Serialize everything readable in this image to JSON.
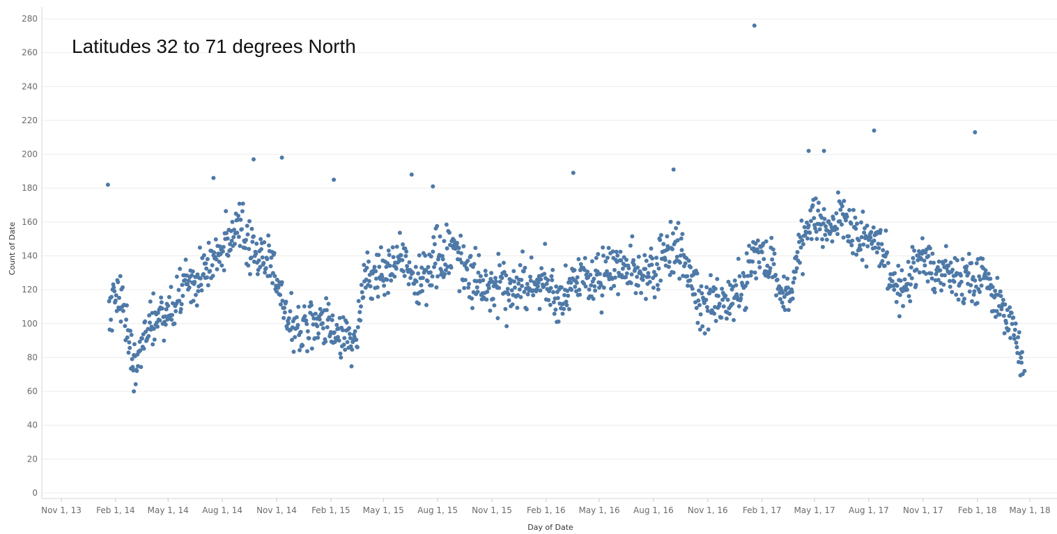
{
  "chart_data": {
    "type": "scatter",
    "title": "Latitudes 32 to 71 degrees North",
    "xlabel": "Day of Date",
    "ylabel": "Count of Date",
    "ylim": [
      0,
      280
    ],
    "y_ticks": [
      0,
      20,
      40,
      60,
      80,
      100,
      120,
      140,
      160,
      180,
      200,
      220,
      240,
      260,
      280
    ],
    "x_range_days": [
      -24,
      1570
    ],
    "x_ticks": [
      {
        "label": "Nov 1, 13",
        "day": 0
      },
      {
        "label": "Feb 1, 14",
        "day": 92
      },
      {
        "label": "May 1, 14",
        "day": 181
      },
      {
        "label": "Aug 1, 14",
        "day": 273
      },
      {
        "label": "Nov 1, 14",
        "day": 365
      },
      {
        "label": "Feb 1, 15",
        "day": 457
      },
      {
        "label": "May 1, 15",
        "day": 546
      },
      {
        "label": "Aug 1, 15",
        "day": 638
      },
      {
        "label": "Nov 1, 15",
        "day": 730
      },
      {
        "label": "Feb 1, 16",
        "day": 822
      },
      {
        "label": "May 1, 16",
        "day": 912
      },
      {
        "label": "Aug 1, 16",
        "day": 1004
      },
      {
        "label": "Nov 1, 16",
        "day": 1096
      },
      {
        "label": "Feb 1, 17",
        "day": 1188
      },
      {
        "label": "May 1, 17",
        "day": 1277
      },
      {
        "label": "Aug 1, 17",
        "day": 1369
      },
      {
        "label": "Nov 1, 17",
        "day": 1461
      },
      {
        "label": "Feb 1, 18",
        "day": 1553
      },
      {
        "label": "May 1, 18",
        "day": 1642
      }
    ],
    "point_color": "#4e79a7",
    "note": "Points are daily counts; the series below is the rough trend digitized from the plot, with notable outliers listed separately.",
    "series": [
      {
        "name": "Count of Date (trend by date)",
        "points": [
          {
            "day": 81,
            "count": 106
          },
          {
            "day": 95,
            "count": 120
          },
          {
            "day": 105,
            "count": 108
          },
          {
            "day": 115,
            "count": 86
          },
          {
            "day": 125,
            "count": 78
          },
          {
            "day": 135,
            "count": 88
          },
          {
            "day": 150,
            "count": 100
          },
          {
            "day": 165,
            "count": 105
          },
          {
            "day": 180,
            "count": 106
          },
          {
            "day": 195,
            "count": 112
          },
          {
            "day": 210,
            "count": 122
          },
          {
            "day": 225,
            "count": 125
          },
          {
            "day": 240,
            "count": 128
          },
          {
            "day": 255,
            "count": 138
          },
          {
            "day": 270,
            "count": 143
          },
          {
            "day": 285,
            "count": 145
          },
          {
            "day": 300,
            "count": 155
          },
          {
            "day": 315,
            "count": 150
          },
          {
            "day": 330,
            "count": 145
          },
          {
            "day": 345,
            "count": 140
          },
          {
            "day": 360,
            "count": 130
          },
          {
            "day": 372,
            "count": 118
          },
          {
            "day": 385,
            "count": 100
          },
          {
            "day": 400,
            "count": 98
          },
          {
            "day": 420,
            "count": 100
          },
          {
            "day": 440,
            "count": 100
          },
          {
            "day": 460,
            "count": 98
          },
          {
            "day": 480,
            "count": 92
          },
          {
            "day": 500,
            "count": 95
          },
          {
            "day": 515,
            "count": 125
          },
          {
            "day": 530,
            "count": 128
          },
          {
            "day": 545,
            "count": 128
          },
          {
            "day": 560,
            "count": 140
          },
          {
            "day": 575,
            "count": 142
          },
          {
            "day": 590,
            "count": 130
          },
          {
            "day": 605,
            "count": 125
          },
          {
            "day": 620,
            "count": 135
          },
          {
            "day": 635,
            "count": 140
          },
          {
            "day": 650,
            "count": 138
          },
          {
            "day": 665,
            "count": 145
          },
          {
            "day": 680,
            "count": 132
          },
          {
            "day": 700,
            "count": 125
          },
          {
            "day": 720,
            "count": 120
          },
          {
            "day": 740,
            "count": 126
          },
          {
            "day": 760,
            "count": 118
          },
          {
            "day": 780,
            "count": 125
          },
          {
            "day": 800,
            "count": 125
          },
          {
            "day": 820,
            "count": 122
          },
          {
            "day": 840,
            "count": 110
          },
          {
            "day": 860,
            "count": 120
          },
          {
            "day": 880,
            "count": 128
          },
          {
            "day": 900,
            "count": 125
          },
          {
            "day": 920,
            "count": 130
          },
          {
            "day": 940,
            "count": 130
          },
          {
            "day": 960,
            "count": 135
          },
          {
            "day": 980,
            "count": 128
          },
          {
            "day": 1000,
            "count": 130
          },
          {
            "day": 1020,
            "count": 140
          },
          {
            "day": 1040,
            "count": 145
          },
          {
            "day": 1055,
            "count": 140
          },
          {
            "day": 1070,
            "count": 122
          },
          {
            "day": 1085,
            "count": 110
          },
          {
            "day": 1100,
            "count": 112
          },
          {
            "day": 1115,
            "count": 108
          },
          {
            "day": 1130,
            "count": 112
          },
          {
            "day": 1145,
            "count": 118
          },
          {
            "day": 1160,
            "count": 125
          },
          {
            "day": 1175,
            "count": 140
          },
          {
            "day": 1190,
            "count": 142
          },
          {
            "day": 1205,
            "count": 132
          },
          {
            "day": 1220,
            "count": 120
          },
          {
            "day": 1235,
            "count": 115
          },
          {
            "day": 1250,
            "count": 140
          },
          {
            "day": 1265,
            "count": 158
          },
          {
            "day": 1280,
            "count": 158
          },
          {
            "day": 1295,
            "count": 155
          },
          {
            "day": 1310,
            "count": 158
          },
          {
            "day": 1325,
            "count": 162
          },
          {
            "day": 1340,
            "count": 155
          },
          {
            "day": 1355,
            "count": 150
          },
          {
            "day": 1370,
            "count": 150
          },
          {
            "day": 1385,
            "count": 148
          },
          {
            "day": 1400,
            "count": 135
          },
          {
            "day": 1415,
            "count": 120
          },
          {
            "day": 1430,
            "count": 118
          },
          {
            "day": 1445,
            "count": 130
          },
          {
            "day": 1460,
            "count": 140
          },
          {
            "day": 1475,
            "count": 135
          },
          {
            "day": 1490,
            "count": 128
          },
          {
            "day": 1505,
            "count": 128
          },
          {
            "day": 1520,
            "count": 130
          },
          {
            "day": 1535,
            "count": 125
          },
          {
            "day": 1550,
            "count": 130
          },
          {
            "day": 1565,
            "count": 128
          },
          {
            "day": 1580,
            "count": 112
          },
          {
            "day": 1595,
            "count": 108
          },
          {
            "day": 1610,
            "count": 100
          },
          {
            "day": 1620,
            "count": 88
          },
          {
            "day": 1630,
            "count": 78
          }
        ]
      },
      {
        "name": "Notable outliers",
        "points": [
          {
            "day": 79,
            "count": 182
          },
          {
            "day": 123,
            "count": 60
          },
          {
            "day": 258,
            "count": 186
          },
          {
            "day": 326,
            "count": 197
          },
          {
            "day": 374,
            "count": 198
          },
          {
            "day": 462,
            "count": 185
          },
          {
            "day": 594,
            "count": 188
          },
          {
            "day": 630,
            "count": 181
          },
          {
            "day": 868,
            "count": 189
          },
          {
            "day": 1038,
            "count": 191
          },
          {
            "day": 1175,
            "count": 276
          },
          {
            "day": 1267,
            "count": 202
          },
          {
            "day": 1293,
            "count": 202
          },
          {
            "day": 1378,
            "count": 214
          },
          {
            "day": 1549,
            "count": 213
          },
          {
            "day": 1633,
            "count": 72
          }
        ]
      }
    ]
  }
}
